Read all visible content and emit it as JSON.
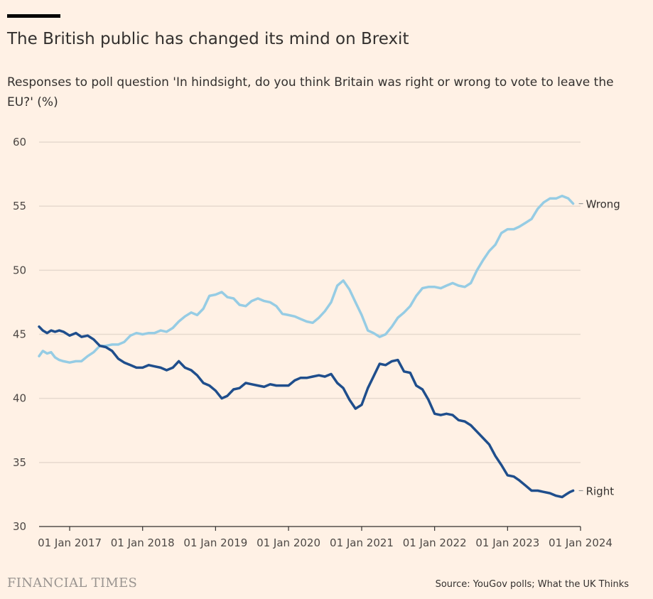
{
  "header": {
    "title": "The British public has changed its mind on Brexit",
    "subtitle": "Responses to poll question 'In hindsight, do you think Britain was right or wrong to vote to leave the EU?' (%)"
  },
  "footer": {
    "brand": "FINANCIAL TIMES",
    "source": "Source: YouGov polls; What the UK Thinks"
  },
  "colors": {
    "background": "#FFF1E5",
    "wrong_series": "#96CCE4",
    "right_series": "#1F4E8C",
    "grid": "#E6D9CE"
  },
  "chart_data": {
    "type": "line",
    "title": "The British public has changed its mind on Brexit",
    "ylabel": "",
    "xlabel": "",
    "ylim": [
      30,
      60
    ],
    "xlim": [
      "2016-08-01",
      "2024-01-01"
    ],
    "y_ticks": [
      30,
      35,
      40,
      45,
      50,
      55,
      60
    ],
    "x_ticks": [
      {
        "date": "2017-01-01",
        "label": "01 Jan 2017"
      },
      {
        "date": "2018-01-01",
        "label": "01 Jan 2018"
      },
      {
        "date": "2019-01-01",
        "label": "01 Jan 2019"
      },
      {
        "date": "2020-01-01",
        "label": "01 Jan 2020"
      },
      {
        "date": "2021-01-01",
        "label": "01 Jan 2021"
      },
      {
        "date": "2022-01-01",
        "label": "01 Jan 2022"
      },
      {
        "date": "2023-01-01",
        "label": "01 Jan 2023"
      },
      {
        "date": "2024-01-01",
        "label": "01 Jan 2024"
      }
    ],
    "grid": true,
    "legend": "direct labels at line ends",
    "series": [
      {
        "name": "Wrong",
        "color": "#96CCE4",
        "points": [
          [
            "2016-08-01",
            43.3
          ],
          [
            "2016-08-20",
            43.7
          ],
          [
            "2016-09-10",
            43.5
          ],
          [
            "2016-09-30",
            43.6
          ],
          [
            "2016-10-20",
            43.2
          ],
          [
            "2016-11-10",
            43.0
          ],
          [
            "2016-12-01",
            42.9
          ],
          [
            "2017-01-01",
            42.8
          ],
          [
            "2017-02-01",
            42.9
          ],
          [
            "2017-03-01",
            42.9
          ],
          [
            "2017-04-01",
            43.3
          ],
          [
            "2017-05-01",
            43.6
          ],
          [
            "2017-06-01",
            44.1
          ],
          [
            "2017-07-01",
            44.1
          ],
          [
            "2017-08-01",
            44.2
          ],
          [
            "2017-09-01",
            44.2
          ],
          [
            "2017-10-01",
            44.4
          ],
          [
            "2017-11-01",
            44.9
          ],
          [
            "2017-12-01",
            45.1
          ],
          [
            "2018-01-01",
            45.0
          ],
          [
            "2018-02-01",
            45.1
          ],
          [
            "2018-03-01",
            45.1
          ],
          [
            "2018-04-01",
            45.3
          ],
          [
            "2018-05-01",
            45.2
          ],
          [
            "2018-06-01",
            45.5
          ],
          [
            "2018-07-01",
            46.0
          ],
          [
            "2018-08-01",
            46.4
          ],
          [
            "2018-09-01",
            46.7
          ],
          [
            "2018-10-01",
            46.5
          ],
          [
            "2018-11-01",
            47.0
          ],
          [
            "2018-12-01",
            48.0
          ],
          [
            "2019-01-01",
            48.1
          ],
          [
            "2019-02-01",
            48.3
          ],
          [
            "2019-03-01",
            47.9
          ],
          [
            "2019-04-01",
            47.8
          ],
          [
            "2019-05-01",
            47.3
          ],
          [
            "2019-06-01",
            47.2
          ],
          [
            "2019-07-01",
            47.6
          ],
          [
            "2019-08-01",
            47.8
          ],
          [
            "2019-09-01",
            47.6
          ],
          [
            "2019-10-01",
            47.5
          ],
          [
            "2019-11-01",
            47.2
          ],
          [
            "2019-12-01",
            46.6
          ],
          [
            "2020-01-01",
            46.5
          ],
          [
            "2020-02-01",
            46.4
          ],
          [
            "2020-03-01",
            46.2
          ],
          [
            "2020-04-01",
            46.0
          ],
          [
            "2020-05-01",
            45.9
          ],
          [
            "2020-06-01",
            46.3
          ],
          [
            "2020-07-01",
            46.8
          ],
          [
            "2020-08-01",
            47.5
          ],
          [
            "2020-09-01",
            48.8
          ],
          [
            "2020-10-01",
            49.2
          ],
          [
            "2020-11-01",
            48.5
          ],
          [
            "2020-12-01",
            47.5
          ],
          [
            "2021-01-01",
            46.5
          ],
          [
            "2021-02-01",
            45.3
          ],
          [
            "2021-03-01",
            45.1
          ],
          [
            "2021-04-01",
            44.8
          ],
          [
            "2021-05-01",
            45.0
          ],
          [
            "2021-06-01",
            45.6
          ],
          [
            "2021-07-01",
            46.3
          ],
          [
            "2021-08-01",
            46.7
          ],
          [
            "2021-09-01",
            47.2
          ],
          [
            "2021-10-01",
            48.0
          ],
          [
            "2021-11-01",
            48.6
          ],
          [
            "2021-12-01",
            48.7
          ],
          [
            "2022-01-01",
            48.7
          ],
          [
            "2022-02-01",
            48.6
          ],
          [
            "2022-03-01",
            48.8
          ],
          [
            "2022-04-01",
            49.0
          ],
          [
            "2022-05-01",
            48.8
          ],
          [
            "2022-06-01",
            48.7
          ],
          [
            "2022-07-01",
            49.0
          ],
          [
            "2022-08-01",
            50.0
          ],
          [
            "2022-09-01",
            50.8
          ],
          [
            "2022-10-01",
            51.5
          ],
          [
            "2022-11-01",
            52.0
          ],
          [
            "2022-12-01",
            52.9
          ],
          [
            "2023-01-01",
            53.2
          ],
          [
            "2023-02-01",
            53.2
          ],
          [
            "2023-03-01",
            53.4
          ],
          [
            "2023-04-01",
            53.7
          ],
          [
            "2023-05-01",
            54.0
          ],
          [
            "2023-06-01",
            54.8
          ],
          [
            "2023-07-01",
            55.3
          ],
          [
            "2023-08-01",
            55.6
          ],
          [
            "2023-09-01",
            55.6
          ],
          [
            "2023-10-01",
            55.8
          ],
          [
            "2023-11-01",
            55.6
          ],
          [
            "2023-11-25",
            55.2
          ]
        ]
      },
      {
        "name": "Right",
        "color": "#1F4E8C",
        "points": [
          [
            "2016-08-01",
            45.6
          ],
          [
            "2016-08-20",
            45.3
          ],
          [
            "2016-09-10",
            45.1
          ],
          [
            "2016-09-30",
            45.3
          ],
          [
            "2016-10-20",
            45.2
          ],
          [
            "2016-11-10",
            45.3
          ],
          [
            "2016-12-01",
            45.2
          ],
          [
            "2017-01-01",
            44.9
          ],
          [
            "2017-02-01",
            45.1
          ],
          [
            "2017-03-01",
            44.8
          ],
          [
            "2017-04-01",
            44.9
          ],
          [
            "2017-05-01",
            44.6
          ],
          [
            "2017-06-01",
            44.1
          ],
          [
            "2017-07-01",
            44.0
          ],
          [
            "2017-08-01",
            43.7
          ],
          [
            "2017-09-01",
            43.1
          ],
          [
            "2017-10-01",
            42.8
          ],
          [
            "2017-11-01",
            42.6
          ],
          [
            "2017-12-01",
            42.4
          ],
          [
            "2018-01-01",
            42.4
          ],
          [
            "2018-02-01",
            42.6
          ],
          [
            "2018-03-01",
            42.5
          ],
          [
            "2018-04-01",
            42.4
          ],
          [
            "2018-05-01",
            42.2
          ],
          [
            "2018-06-01",
            42.4
          ],
          [
            "2018-07-01",
            42.9
          ],
          [
            "2018-08-01",
            42.4
          ],
          [
            "2018-09-01",
            42.2
          ],
          [
            "2018-10-01",
            41.8
          ],
          [
            "2018-11-01",
            41.2
          ],
          [
            "2018-12-01",
            41.0
          ],
          [
            "2019-01-01",
            40.6
          ],
          [
            "2019-02-01",
            40.0
          ],
          [
            "2019-03-01",
            40.2
          ],
          [
            "2019-04-01",
            40.7
          ],
          [
            "2019-05-01",
            40.8
          ],
          [
            "2019-06-01",
            41.2
          ],
          [
            "2019-07-01",
            41.1
          ],
          [
            "2019-08-01",
            41.0
          ],
          [
            "2019-09-01",
            40.9
          ],
          [
            "2019-10-01",
            41.1
          ],
          [
            "2019-11-01",
            41.0
          ],
          [
            "2019-12-01",
            41.0
          ],
          [
            "2020-01-01",
            41.0
          ],
          [
            "2020-02-01",
            41.4
          ],
          [
            "2020-03-01",
            41.6
          ],
          [
            "2020-04-01",
            41.6
          ],
          [
            "2020-05-01",
            41.7
          ],
          [
            "2020-06-01",
            41.8
          ],
          [
            "2020-07-01",
            41.7
          ],
          [
            "2020-08-01",
            41.9
          ],
          [
            "2020-09-01",
            41.2
          ],
          [
            "2020-10-01",
            40.8
          ],
          [
            "2020-11-01",
            39.9
          ],
          [
            "2020-12-01",
            39.2
          ],
          [
            "2021-01-01",
            39.5
          ],
          [
            "2021-02-01",
            40.8
          ],
          [
            "2021-03-01",
            41.7
          ],
          [
            "2021-04-01",
            42.7
          ],
          [
            "2021-05-01",
            42.6
          ],
          [
            "2021-06-01",
            42.9
          ],
          [
            "2021-07-01",
            43.0
          ],
          [
            "2021-08-01",
            42.1
          ],
          [
            "2021-09-01",
            42.0
          ],
          [
            "2021-10-01",
            41.0
          ],
          [
            "2021-11-01",
            40.7
          ],
          [
            "2021-12-01",
            39.9
          ],
          [
            "2022-01-01",
            38.8
          ],
          [
            "2022-02-01",
            38.7
          ],
          [
            "2022-03-01",
            38.8
          ],
          [
            "2022-04-01",
            38.7
          ],
          [
            "2022-05-01",
            38.3
          ],
          [
            "2022-06-01",
            38.2
          ],
          [
            "2022-07-01",
            37.9
          ],
          [
            "2022-08-01",
            37.4
          ],
          [
            "2022-09-01",
            36.9
          ],
          [
            "2022-10-01",
            36.4
          ],
          [
            "2022-11-01",
            35.5
          ],
          [
            "2022-12-01",
            34.8
          ],
          [
            "2023-01-01",
            34.0
          ],
          [
            "2023-02-01",
            33.9
          ],
          [
            "2023-03-01",
            33.6
          ],
          [
            "2023-04-01",
            33.2
          ],
          [
            "2023-05-01",
            32.8
          ],
          [
            "2023-06-01",
            32.8
          ],
          [
            "2023-07-01",
            32.7
          ],
          [
            "2023-08-01",
            32.6
          ],
          [
            "2023-09-01",
            32.4
          ],
          [
            "2023-10-01",
            32.3
          ],
          [
            "2023-10-20",
            32.5
          ],
          [
            "2023-11-10",
            32.7
          ],
          [
            "2023-11-25",
            32.8
          ]
        ]
      }
    ]
  }
}
